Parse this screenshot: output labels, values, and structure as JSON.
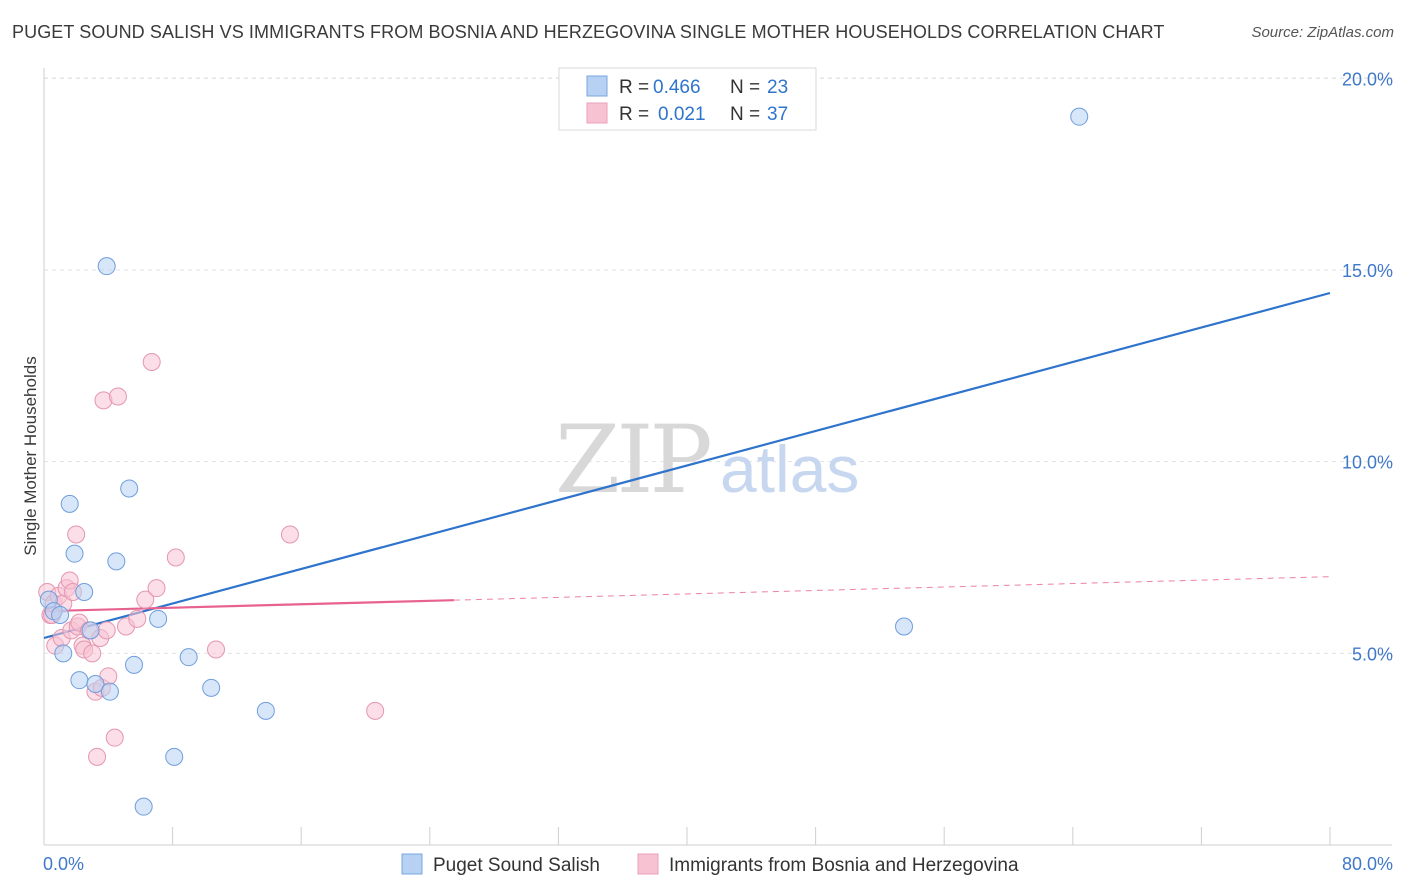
{
  "title": "PUGET SOUND SALISH VS IMMIGRANTS FROM BOSNIA AND HERZEGOVINA SINGLE MOTHER HOUSEHOLDS CORRELATION CHART",
  "source": "Source: ZipAtlas.com",
  "watermark": {
    "zip": "ZIP",
    "atlas": "atlas"
  },
  "colors": {
    "blue": "#2f74cc",
    "blue_fill": "#b7d1f3",
    "pink": "#e8628f",
    "pink_fill": "#f7c3d3",
    "grid": "#e2e2e2",
    "axis_label": "#3f78c9"
  },
  "chart_data": {
    "type": "scatter",
    "xlabel": "",
    "ylabel": "Single Mother Households",
    "xlim": [
      0,
      80
    ],
    "ylim": [
      0,
      21
    ],
    "x_tick_labels": [
      {
        "value": 0,
        "label": "0.0%"
      },
      {
        "value": 80,
        "label": "80.0%"
      }
    ],
    "y_ticks": [
      {
        "value": 5,
        "label": "5.0%"
      },
      {
        "value": 10,
        "label": "10.0%"
      },
      {
        "value": 15,
        "label": "15.0%"
      },
      {
        "value": 20,
        "label": "20.0%"
      }
    ],
    "legend_stats": [
      {
        "r_label": "R =",
        "r_value": "0.466",
        "n_label": "N =",
        "n_value": "23"
      },
      {
        "r_label": "R =",
        "r_value": "0.021",
        "n_label": "N =",
        "n_value": "37"
      }
    ],
    "series": [
      {
        "name": "Puget Sound Salish",
        "color": "blue",
        "points": [
          [
            0.3,
            6.4
          ],
          [
            0.6,
            6.1
          ],
          [
            1.0,
            6.0
          ],
          [
            1.2,
            5.0
          ],
          [
            1.6,
            8.9
          ],
          [
            1.9,
            7.6
          ],
          [
            2.2,
            4.3
          ],
          [
            2.5,
            6.6
          ],
          [
            2.9,
            5.6
          ],
          [
            3.2,
            4.2
          ],
          [
            4.1,
            4.0
          ],
          [
            3.9,
            15.1
          ],
          [
            4.5,
            7.4
          ],
          [
            5.3,
            9.3
          ],
          [
            5.6,
            4.7
          ],
          [
            6.2,
            1.0
          ],
          [
            7.1,
            5.9
          ],
          [
            8.1,
            2.3
          ],
          [
            9.0,
            4.9
          ],
          [
            10.4,
            4.1
          ],
          [
            13.8,
            3.5
          ],
          [
            53.5,
            5.7
          ],
          [
            64.4,
            19.0
          ]
        ],
        "trend": {
          "x": [
            0,
            80
          ],
          "y": [
            5.4,
            14.4
          ],
          "dashed_from": null
        }
      },
      {
        "name": "Immigrants from Bosnia and Herzegovina",
        "color": "pink",
        "points": [
          [
            0.2,
            6.6
          ],
          [
            0.4,
            6.0
          ],
          [
            0.6,
            6.3
          ],
          [
            0.7,
            5.2
          ],
          [
            0.9,
            6.5
          ],
          [
            1.1,
            5.4
          ],
          [
            1.2,
            6.3
          ],
          [
            1.4,
            6.7
          ],
          [
            1.6,
            6.9
          ],
          [
            1.7,
            5.6
          ],
          [
            1.8,
            6.6
          ],
          [
            2.0,
            8.1
          ],
          [
            2.1,
            5.7
          ],
          [
            2.2,
            5.8
          ],
          [
            2.4,
            5.2
          ],
          [
            2.5,
            5.1
          ],
          [
            2.8,
            5.6
          ],
          [
            3.0,
            5.0
          ],
          [
            3.2,
            4.0
          ],
          [
            3.3,
            2.3
          ],
          [
            3.5,
            5.4
          ],
          [
            3.6,
            4.1
          ],
          [
            3.7,
            11.6
          ],
          [
            3.9,
            5.6
          ],
          [
            4.0,
            4.4
          ],
          [
            4.4,
            2.8
          ],
          [
            4.6,
            11.7
          ],
          [
            5.1,
            5.7
          ],
          [
            5.8,
            5.9
          ],
          [
            6.3,
            6.4
          ],
          [
            6.7,
            12.6
          ],
          [
            7.0,
            6.7
          ],
          [
            8.2,
            7.5
          ],
          [
            10.7,
            5.1
          ],
          [
            15.3,
            8.1
          ],
          [
            20.6,
            3.5
          ],
          [
            0.5,
            6.0
          ]
        ],
        "trend": {
          "x": [
            0,
            80
          ],
          "y": [
            6.1,
            7.0
          ],
          "dashed_from": 25.5
        }
      }
    ]
  }
}
